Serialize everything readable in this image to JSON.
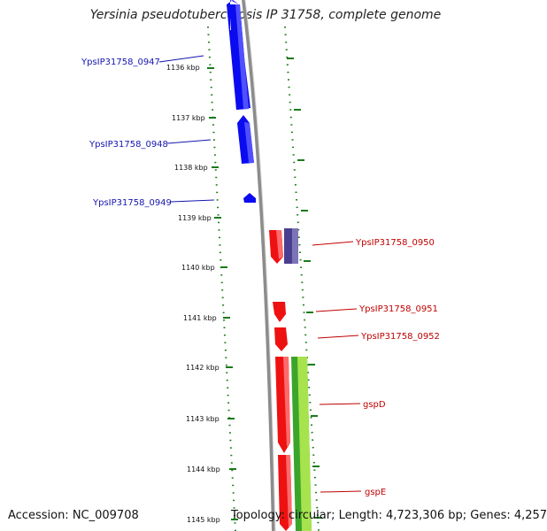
{
  "title": "Yersinia pseudotuberculosis IP 31758, complete genome",
  "footer": {
    "accession": "Accession: NC_009708",
    "summary": "Topology: circular; Length: 4,723,306 bp; Genes: 4,257"
  },
  "ticks": [
    {
      "label": "1136 kbp"
    },
    {
      "label": "1137 kbp"
    },
    {
      "label": "1138 kbp"
    },
    {
      "label": "1139 kbp"
    },
    {
      "label": "1140 kbp"
    },
    {
      "label": "1141 kbp"
    },
    {
      "label": "1142 kbp"
    },
    {
      "label": "1143 kbp"
    },
    {
      "label": "1144 kbp"
    },
    {
      "label": "1145 kbp"
    }
  ],
  "gene_labels": [
    {
      "name": "YpsIP31758_0947",
      "strand": "reverse"
    },
    {
      "name": "YpsIP31758_0948",
      "strand": "reverse"
    },
    {
      "name": "YpsIP31758_0949",
      "strand": "reverse"
    },
    {
      "name": "YpsIP31758_0950",
      "strand": "forward"
    },
    {
      "name": "YpsIP31758_0951",
      "strand": "forward"
    },
    {
      "name": "YpsIP31758_0952",
      "strand": "forward"
    },
    {
      "name": "gspD",
      "strand": "forward"
    },
    {
      "name": "gspE",
      "strand": "forward"
    }
  ],
  "colors": {
    "reverse_gene": "#0b0bf0",
    "forward_gene": "#ee1111",
    "other_feature": "#4a3f8f",
    "gc_feature": "#3aa52a",
    "backbone": "#8c8c8c",
    "tick": "#1b7a1b",
    "reverse_label": "#1515b0",
    "forward_label": "#c00000"
  }
}
